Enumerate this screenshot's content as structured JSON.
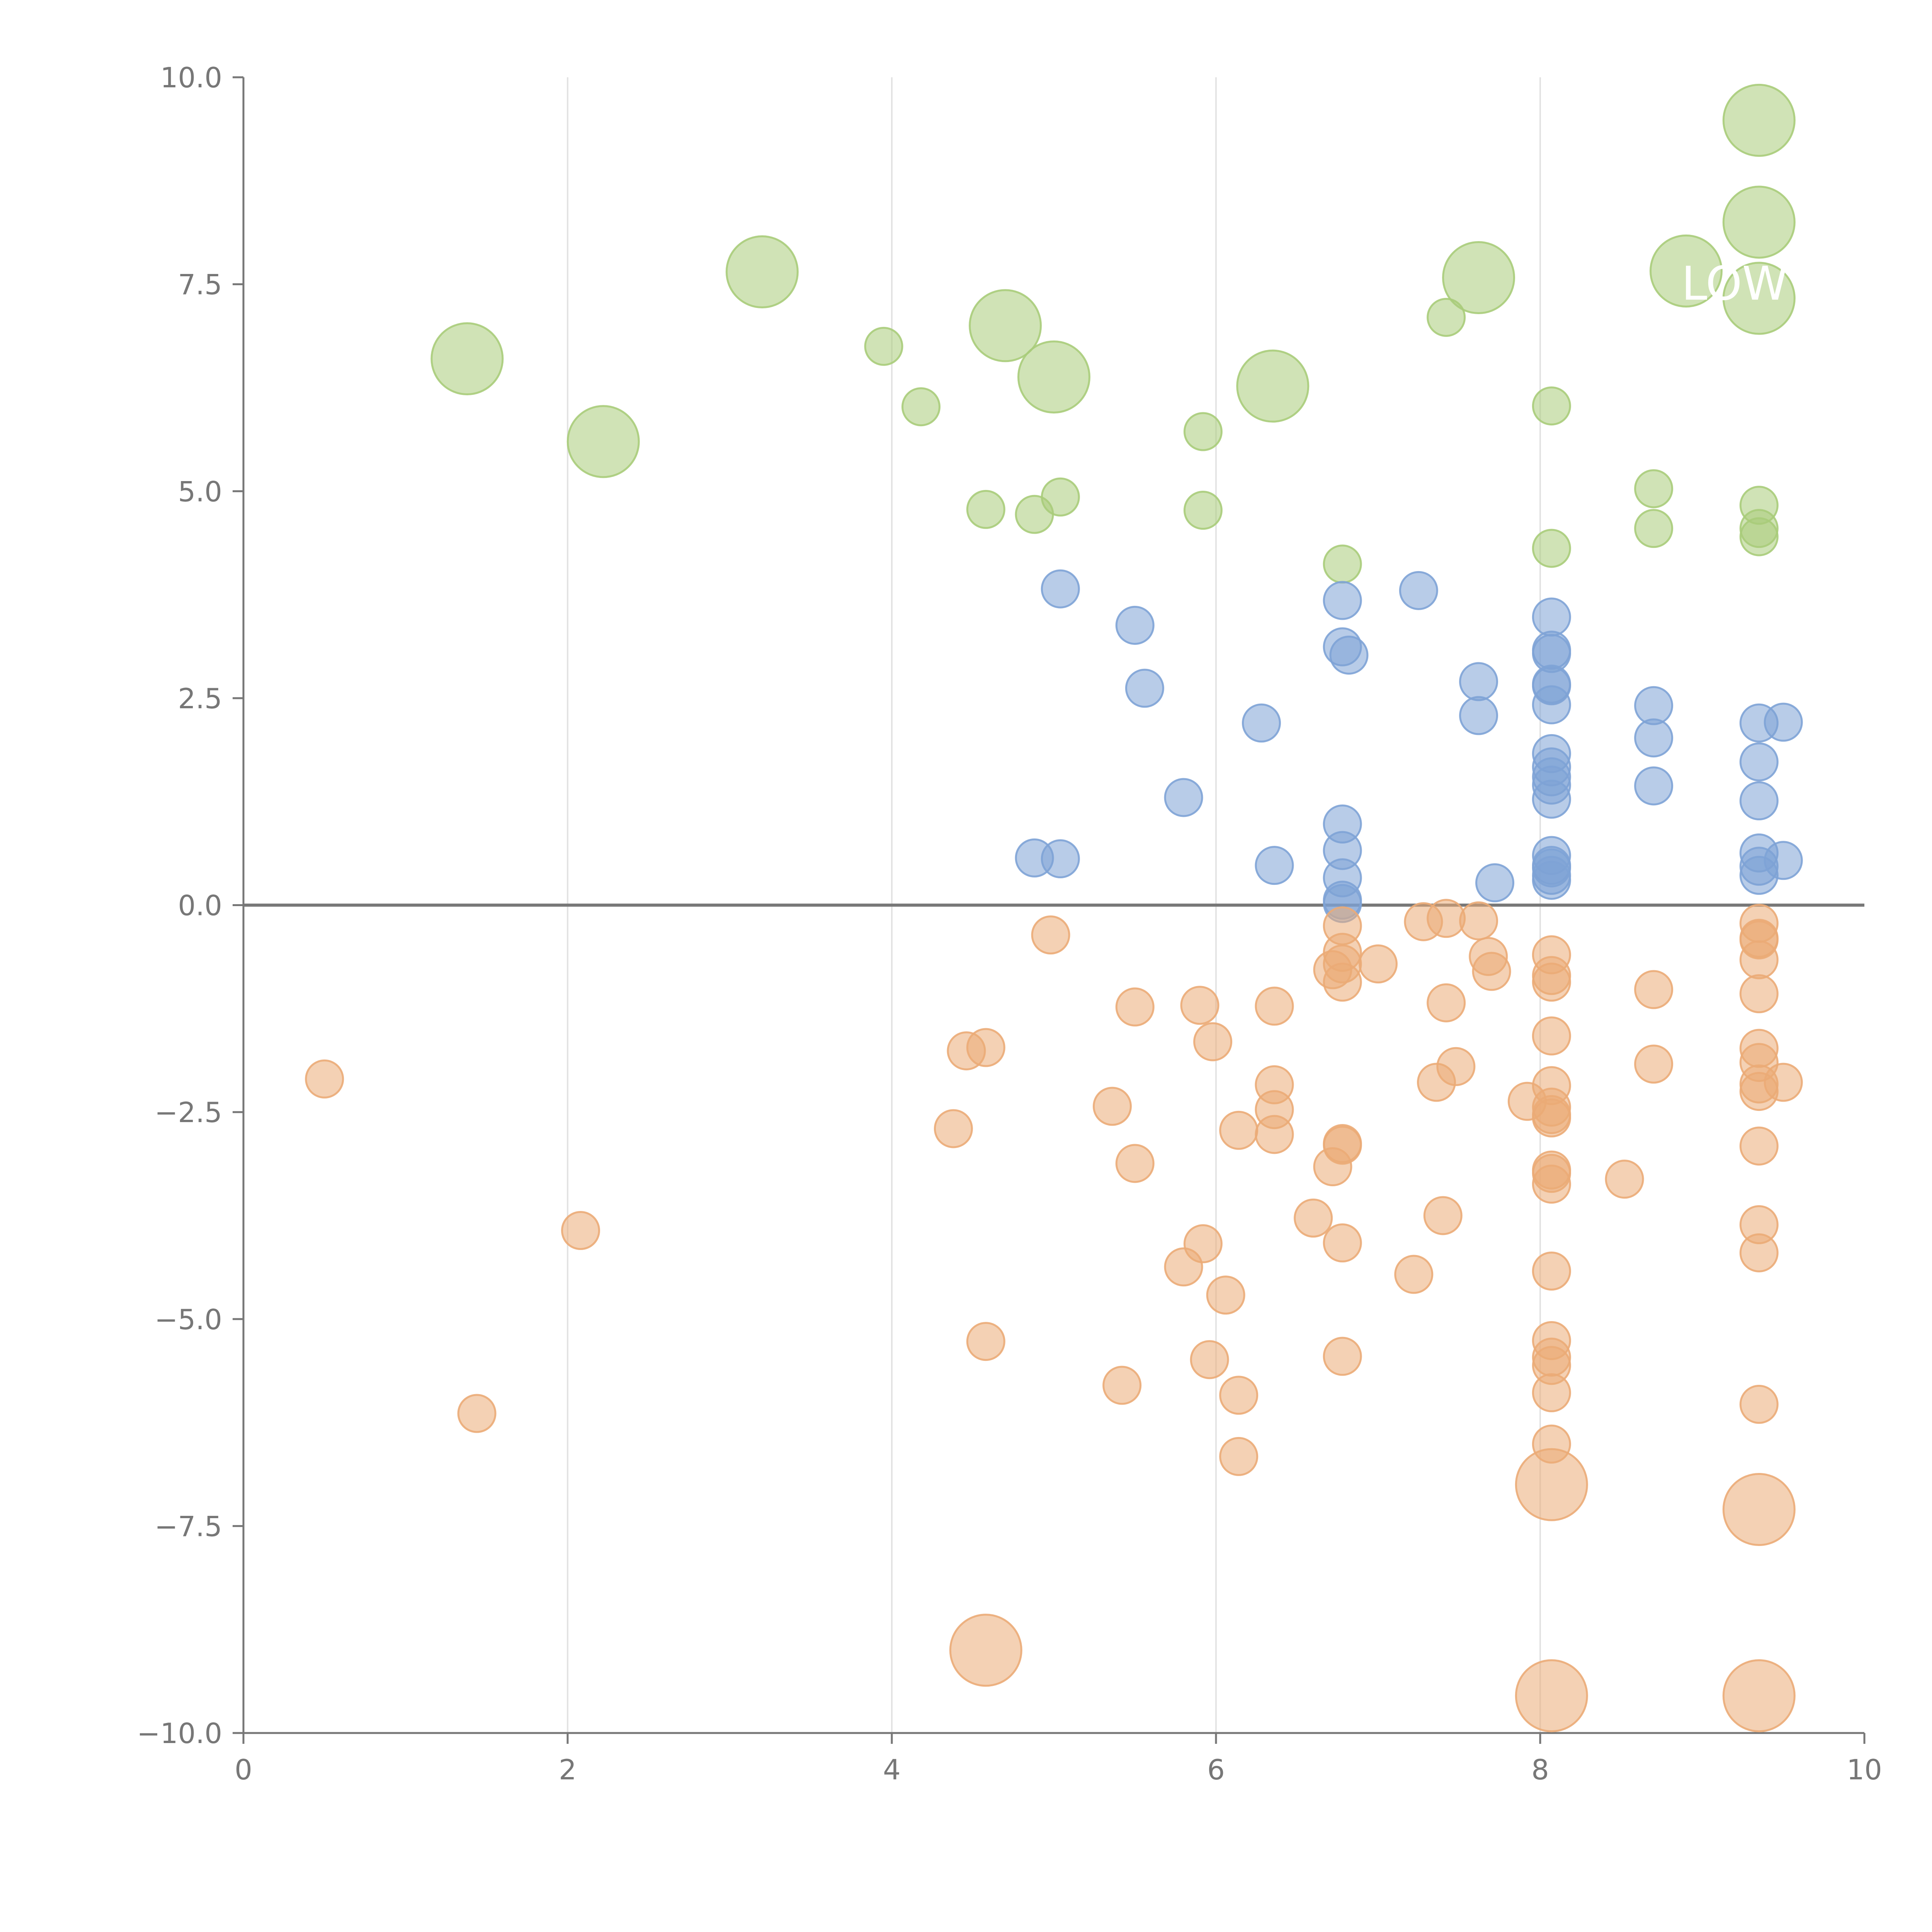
{
  "chart_data": {
    "type": "scatter",
    "title": "",
    "xlabel": "",
    "ylabel": "",
    "xlim": [
      0,
      10
    ],
    "ylim": [
      -10,
      10
    ],
    "x_ticks": [
      "0",
      "2",
      "4",
      "6",
      "8",
      "10"
    ],
    "x_tick_values": [
      0,
      2,
      4,
      6,
      8,
      10
    ],
    "y_ticks": [
      "10.0",
      "7.5",
      "5.0",
      "2.5",
      "0.0",
      "−2.5",
      "−5.0",
      "−7.5",
      "−10.0"
    ],
    "y_tick_values": [
      10,
      7.5,
      5,
      2.5,
      0,
      -2.5,
      -5,
      -7.5,
      -10
    ],
    "vertical_gridlines": [
      2,
      4,
      6,
      8
    ],
    "reference_line_y": 0,
    "colors": {
      "green": "#a9cc7a",
      "blue": "#7ea3d6",
      "orange": "#ebab77",
      "axis": "#777777",
      "grid": "#e3e3e3",
      "zero_line": "#777777"
    },
    "size_scale": {
      "small": 1,
      "large": 3
    },
    "series": [
      {
        "name": "green",
        "color": "#a9cc7a",
        "points": [
          {
            "x": 1.38,
            "y": 6.6,
            "size": 3
          },
          {
            "x": 2.22,
            "y": 5.6,
            "size": 3
          },
          {
            "x": 3.2,
            "y": 7.65,
            "size": 3
          },
          {
            "x": 3.95,
            "y": 6.75,
            "size": 1
          },
          {
            "x": 4.18,
            "y": 6.02,
            "size": 1
          },
          {
            "x": 4.7,
            "y": 7.0,
            "size": 3
          },
          {
            "x": 5.0,
            "y": 6.38,
            "size": 3
          },
          {
            "x": 6.35,
            "y": 6.27,
            "size": 3
          },
          {
            "x": 7.42,
            "y": 7.1,
            "size": 1
          },
          {
            "x": 7.62,
            "y": 7.58,
            "size": 3
          },
          {
            "x": 8.9,
            "y": 7.66,
            "size": 3
          },
          {
            "x": 9.35,
            "y": 9.48,
            "size": 3
          },
          {
            "x": 9.35,
            "y": 8.25,
            "size": 3
          },
          {
            "x": 9.35,
            "y": 7.33,
            "size": 3
          },
          {
            "x": 5.92,
            "y": 5.72,
            "size": 1
          },
          {
            "x": 8.07,
            "y": 6.03,
            "size": 1
          },
          {
            "x": 4.58,
            "y": 4.78,
            "size": 1
          },
          {
            "x": 4.88,
            "y": 4.72,
            "size": 1
          },
          {
            "x": 5.04,
            "y": 4.93,
            "size": 1
          },
          {
            "x": 5.92,
            "y": 4.77,
            "size": 1
          },
          {
            "x": 6.78,
            "y": 4.12,
            "size": 1
          },
          {
            "x": 8.07,
            "y": 4.31,
            "size": 1
          },
          {
            "x": 8.7,
            "y": 5.03,
            "size": 1
          },
          {
            "x": 8.7,
            "y": 4.55,
            "size": 1
          },
          {
            "x": 9.35,
            "y": 4.83,
            "size": 1
          },
          {
            "x": 9.35,
            "y": 4.55,
            "size": 1
          },
          {
            "x": 9.35,
            "y": 4.45,
            "size": 1
          }
        ]
      },
      {
        "name": "blue",
        "color": "#7ea3d6",
        "points": [
          {
            "x": 5.04,
            "y": 3.82,
            "size": 1
          },
          {
            "x": 5.5,
            "y": 3.38,
            "size": 1
          },
          {
            "x": 5.56,
            "y": 2.62,
            "size": 1
          },
          {
            "x": 6.28,
            "y": 2.2,
            "size": 1
          },
          {
            "x": 5.8,
            "y": 1.3,
            "size": 1
          },
          {
            "x": 4.88,
            "y": 0.57,
            "size": 1
          },
          {
            "x": 5.04,
            "y": 0.56,
            "size": 1
          },
          {
            "x": 6.36,
            "y": 0.48,
            "size": 1
          },
          {
            "x": 6.78,
            "y": 3.68,
            "size": 1
          },
          {
            "x": 6.78,
            "y": 3.12,
            "size": 1
          },
          {
            "x": 6.82,
            "y": 3.02,
            "size": 1
          },
          {
            "x": 7.25,
            "y": 3.8,
            "size": 1
          },
          {
            "x": 6.78,
            "y": 0.98,
            "size": 1
          },
          {
            "x": 6.78,
            "y": 0.66,
            "size": 1
          },
          {
            "x": 6.78,
            "y": 0.33,
            "size": 1
          },
          {
            "x": 6.78,
            "y": 0.06,
            "size": 1
          },
          {
            "x": 6.78,
            "y": 0.02,
            "size": 1
          },
          {
            "x": 7.62,
            "y": 2.7,
            "size": 1
          },
          {
            "x": 7.62,
            "y": 2.29,
            "size": 1
          },
          {
            "x": 7.72,
            "y": 0.27,
            "size": 1
          },
          {
            "x": 8.07,
            "y": 3.48,
            "size": 1
          },
          {
            "x": 8.07,
            "y": 3.08,
            "size": 1
          },
          {
            "x": 8.07,
            "y": 3.04,
            "size": 1
          },
          {
            "x": 8.07,
            "y": 2.67,
            "size": 1
          },
          {
            "x": 8.07,
            "y": 2.65,
            "size": 1
          },
          {
            "x": 8.07,
            "y": 2.42,
            "size": 1
          },
          {
            "x": 8.07,
            "y": 1.83,
            "size": 1
          },
          {
            "x": 8.07,
            "y": 1.67,
            "size": 1
          },
          {
            "x": 8.07,
            "y": 1.55,
            "size": 1
          },
          {
            "x": 8.07,
            "y": 1.45,
            "size": 1
          },
          {
            "x": 8.07,
            "y": 1.28,
            "size": 1
          },
          {
            "x": 8.07,
            "y": 0.6,
            "size": 1
          },
          {
            "x": 8.07,
            "y": 0.48,
            "size": 1
          },
          {
            "x": 8.07,
            "y": 0.45,
            "size": 1
          },
          {
            "x": 8.07,
            "y": 0.36,
            "size": 1
          },
          {
            "x": 8.07,
            "y": 0.3,
            "size": 1
          },
          {
            "x": 8.7,
            "y": 2.41,
            "size": 1
          },
          {
            "x": 8.7,
            "y": 2.02,
            "size": 1
          },
          {
            "x": 8.7,
            "y": 1.44,
            "size": 1
          },
          {
            "x": 9.35,
            "y": 2.2,
            "size": 1
          },
          {
            "x": 9.5,
            "y": 2.21,
            "size": 1
          },
          {
            "x": 9.35,
            "y": 1.73,
            "size": 1
          },
          {
            "x": 9.35,
            "y": 1.26,
            "size": 1
          },
          {
            "x": 9.35,
            "y": 0.63,
            "size": 1
          },
          {
            "x": 9.35,
            "y": 0.47,
            "size": 1
          },
          {
            "x": 9.35,
            "y": 0.36,
            "size": 1
          },
          {
            "x": 9.5,
            "y": 0.54,
            "size": 1
          }
        ]
      },
      {
        "name": "orange",
        "color": "#ebab77",
        "points": [
          {
            "x": 0.5,
            "y": -2.1,
            "size": 1
          },
          {
            "x": 2.08,
            "y": -3.93,
            "size": 1
          },
          {
            "x": 1.44,
            "y": -6.14,
            "size": 1
          },
          {
            "x": 4.58,
            "y": -9.0,
            "size": 3
          },
          {
            "x": 8.07,
            "y": -7.0,
            "size": 3
          },
          {
            "x": 9.35,
            "y": -7.3,
            "size": 3
          },
          {
            "x": 8.07,
            "y": -9.55,
            "size": 3
          },
          {
            "x": 9.35,
            "y": -9.55,
            "size": 3
          },
          {
            "x": 4.98,
            "y": -0.36,
            "size": 1
          },
          {
            "x": 5.5,
            "y": -1.23,
            "size": 1
          },
          {
            "x": 4.46,
            "y": -1.76,
            "size": 1
          },
          {
            "x": 4.58,
            "y": -1.72,
            "size": 1
          },
          {
            "x": 4.38,
            "y": -2.7,
            "size": 1
          },
          {
            "x": 5.36,
            "y": -2.43,
            "size": 1
          },
          {
            "x": 5.5,
            "y": -3.12,
            "size": 1
          },
          {
            "x": 5.9,
            "y": -1.21,
            "size": 1
          },
          {
            "x": 5.98,
            "y": -1.65,
            "size": 1
          },
          {
            "x": 6.36,
            "y": -1.22,
            "size": 1
          },
          {
            "x": 6.36,
            "y": -2.17,
            "size": 1
          },
          {
            "x": 6.36,
            "y": -2.47,
            "size": 1
          },
          {
            "x": 6.36,
            "y": -2.77,
            "size": 1
          },
          {
            "x": 6.14,
            "y": -2.72,
            "size": 1
          },
          {
            "x": 5.92,
            "y": -4.09,
            "size": 1
          },
          {
            "x": 5.8,
            "y": -4.37,
            "size": 1
          },
          {
            "x": 6.06,
            "y": -4.71,
            "size": 1
          },
          {
            "x": 4.58,
            "y": -5.27,
            "size": 1
          },
          {
            "x": 5.42,
            "y": -5.8,
            "size": 1
          },
          {
            "x": 5.96,
            "y": -5.49,
            "size": 1
          },
          {
            "x": 6.14,
            "y": -5.92,
            "size": 1
          },
          {
            "x": 6.14,
            "y": -6.66,
            "size": 1
          },
          {
            "x": 6.78,
            "y": -0.25,
            "size": 1
          },
          {
            "x": 6.78,
            "y": -0.57,
            "size": 1
          },
          {
            "x": 6.78,
            "y": -0.71,
            "size": 1
          },
          {
            "x": 6.72,
            "y": -0.78,
            "size": 1
          },
          {
            "x": 6.78,
            "y": -0.93,
            "size": 1
          },
          {
            "x": 7.0,
            "y": -0.71,
            "size": 1
          },
          {
            "x": 7.28,
            "y": -0.2,
            "size": 1
          },
          {
            "x": 7.42,
            "y": -0.16,
            "size": 1
          },
          {
            "x": 7.62,
            "y": -0.19,
            "size": 1
          },
          {
            "x": 7.68,
            "y": -0.62,
            "size": 1
          },
          {
            "x": 7.7,
            "y": -0.8,
            "size": 1
          },
          {
            "x": 7.42,
            "y": -1.18,
            "size": 1
          },
          {
            "x": 7.36,
            "y": -2.14,
            "size": 1
          },
          {
            "x": 7.48,
            "y": -1.95,
            "size": 1
          },
          {
            "x": 6.78,
            "y": -2.88,
            "size": 1
          },
          {
            "x": 6.78,
            "y": -2.9,
            "size": 1
          },
          {
            "x": 6.72,
            "y": -3.16,
            "size": 1
          },
          {
            "x": 6.6,
            "y": -3.78,
            "size": 1
          },
          {
            "x": 6.78,
            "y": -4.08,
            "size": 1
          },
          {
            "x": 7.22,
            "y": -4.46,
            "size": 1
          },
          {
            "x": 7.4,
            "y": -3.75,
            "size": 1
          },
          {
            "x": 6.78,
            "y": -5.45,
            "size": 1
          },
          {
            "x": 8.07,
            "y": -0.6,
            "size": 1
          },
          {
            "x": 8.07,
            "y": -0.85,
            "size": 1
          },
          {
            "x": 8.07,
            "y": -0.93,
            "size": 1
          },
          {
            "x": 8.07,
            "y": -1.58,
            "size": 1
          },
          {
            "x": 8.07,
            "y": -2.18,
            "size": 1
          },
          {
            "x": 7.92,
            "y": -2.37,
            "size": 1
          },
          {
            "x": 8.07,
            "y": -2.44,
            "size": 1
          },
          {
            "x": 8.07,
            "y": -2.53,
            "size": 1
          },
          {
            "x": 8.07,
            "y": -2.57,
            "size": 1
          },
          {
            "x": 8.07,
            "y": -3.2,
            "size": 1
          },
          {
            "x": 8.07,
            "y": -3.24,
            "size": 1
          },
          {
            "x": 8.07,
            "y": -3.37,
            "size": 1
          },
          {
            "x": 8.52,
            "y": -3.31,
            "size": 1
          },
          {
            "x": 8.07,
            "y": -4.42,
            "size": 1
          },
          {
            "x": 8.07,
            "y": -5.26,
            "size": 1
          },
          {
            "x": 8.07,
            "y": -5.46,
            "size": 1
          },
          {
            "x": 8.07,
            "y": -5.56,
            "size": 1
          },
          {
            "x": 8.07,
            "y": -5.89,
            "size": 1
          },
          {
            "x": 8.07,
            "y": -6.51,
            "size": 1
          },
          {
            "x": 8.7,
            "y": -1.02,
            "size": 1
          },
          {
            "x": 8.7,
            "y": -1.92,
            "size": 1
          },
          {
            "x": 9.35,
            "y": -0.22,
            "size": 1
          },
          {
            "x": 9.35,
            "y": -0.4,
            "size": 1
          },
          {
            "x": 9.35,
            "y": -0.42,
            "size": 1
          },
          {
            "x": 9.35,
            "y": -0.66,
            "size": 1
          },
          {
            "x": 9.35,
            "y": -1.07,
            "size": 1
          },
          {
            "x": 9.35,
            "y": -1.73,
            "size": 1
          },
          {
            "x": 9.35,
            "y": -1.9,
            "size": 1
          },
          {
            "x": 9.35,
            "y": -2.16,
            "size": 1
          },
          {
            "x": 9.35,
            "y": -2.25,
            "size": 1
          },
          {
            "x": 9.5,
            "y": -2.14,
            "size": 1
          },
          {
            "x": 9.35,
            "y": -2.91,
            "size": 1
          },
          {
            "x": 9.35,
            "y": -3.86,
            "size": 1
          },
          {
            "x": 9.35,
            "y": -4.2,
            "size": 1
          },
          {
            "x": 9.35,
            "y": -6.03,
            "size": 1
          }
        ]
      }
    ],
    "annotations": [
      {
        "text": "LOW",
        "x": 9.2,
        "y": 7.5
      }
    ]
  }
}
